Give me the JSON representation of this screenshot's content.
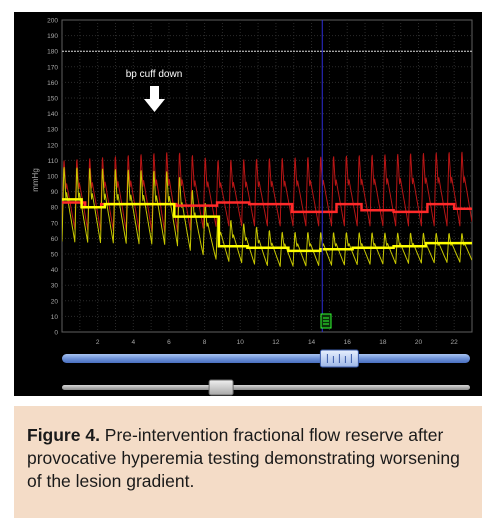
{
  "monitor": {
    "annotation": "bp cuff down",
    "arrow_icon": "down-arrow-icon",
    "event_marker_icon": "event-marker-icon"
  },
  "chart_data": {
    "type": "line",
    "ylabel": "mmHg",
    "ylim": [
      0,
      200
    ],
    "xlim": [
      0,
      23
    ],
    "yticks": [
      0,
      10,
      20,
      30,
      40,
      50,
      60,
      70,
      80,
      90,
      100,
      110,
      120,
      130,
      140,
      150,
      160,
      170,
      180,
      190,
      200
    ],
    "xticks": [
      2,
      4,
      6,
      8,
      10,
      12,
      14,
      16,
      18,
      20,
      22
    ],
    "reference_line_y": 180,
    "cursor_x": 14.6,
    "grid": true,
    "series": [
      {
        "color": "#ff2a2a",
        "style": "mean-step",
        "x": [
          0,
          1.3,
          2.2,
          6.4,
          8.7,
          10.5,
          12.9,
          15.4,
          16.8,
          18.6,
          20.5,
          22,
          23
        ],
        "values": [
          83,
          80,
          82,
          81,
          83,
          82,
          77,
          82,
          78,
          77,
          82,
          79,
          76
        ]
      },
      {
        "color": "#ffff00",
        "style": "mean-step",
        "x": [
          0,
          1.1,
          2.4,
          6.3,
          8.8,
          10.4,
          12.7,
          14.5,
          16.3,
          18.6,
          20.4,
          23
        ],
        "values": [
          85,
          80,
          82,
          74,
          55,
          54,
          52,
          53,
          54,
          55,
          57,
          58
        ]
      },
      {
        "color": "#b81515",
        "style": "pulsatile",
        "beat_period": 0.72,
        "peaks": [
          [
            0,
            112
          ],
          [
            6.3,
            118
          ],
          [
            8.8,
            112
          ],
          [
            23,
            118
          ]
        ],
        "troughs": [
          [
            0,
            66
          ],
          [
            6.3,
            64
          ],
          [
            8.8,
            68
          ],
          [
            23,
            68
          ]
        ]
      },
      {
        "color": "#c9c900",
        "style": "pulsatile",
        "beat_period": 0.72,
        "peaks": [
          [
            0,
            108
          ],
          [
            6.3,
            105
          ],
          [
            8.8,
            75
          ],
          [
            12,
            65
          ],
          [
            23,
            64
          ]
        ],
        "troughs": [
          [
            0,
            58
          ],
          [
            6.3,
            56
          ],
          [
            8.8,
            46
          ],
          [
            12,
            42
          ],
          [
            23,
            45
          ]
        ]
      }
    ]
  },
  "scrollbar": {
    "position": 0.68
  },
  "zoom_slider": {
    "position": 0.39
  },
  "caption": {
    "label": "Figure 4.",
    "text": " Pre-intervention fractional flow reserve after provocative hyperemia testing demonstrating worsening of the lesion gradient."
  }
}
